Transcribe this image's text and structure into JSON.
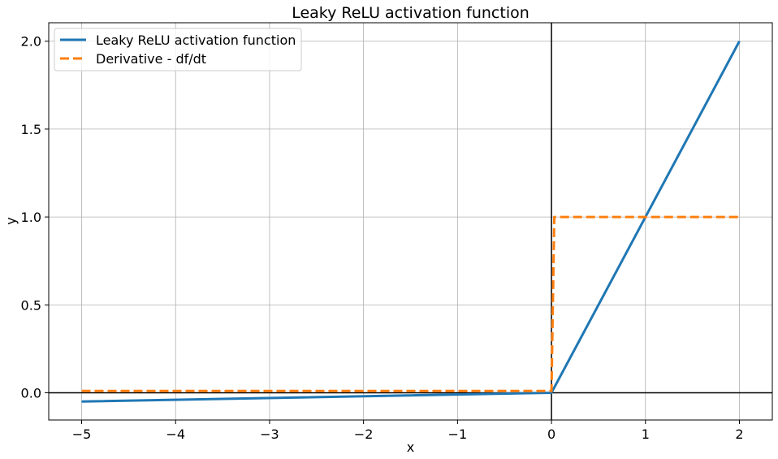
{
  "chart_data": {
    "type": "line",
    "title": "Leaky ReLU activation function",
    "xlabel": "x",
    "ylabel": "y",
    "xlim": [
      -5.35,
      2.35
    ],
    "ylim": [
      -0.155,
      2.105
    ],
    "xticks": [
      -5,
      -4,
      -3,
      -2,
      -1,
      0,
      1,
      2
    ],
    "xtick_labels": [
      "−5",
      "−4",
      "−3",
      "−2",
      "−1",
      "0",
      "1",
      "2"
    ],
    "yticks": [
      0.0,
      0.5,
      1.0,
      1.5,
      2.0
    ],
    "ytick_labels": [
      "0.0",
      "0.5",
      "1.0",
      "1.5",
      "2.0"
    ],
    "grid": true,
    "legend_position": "top-left",
    "reference_lines": {
      "x": 0,
      "y": 0
    },
    "series": [
      {
        "name": "Leaky ReLU activation function",
        "style": "solid",
        "color": "#1f77b4",
        "x": [
          -5,
          0,
          2
        ],
        "y": [
          -0.05,
          0,
          2
        ]
      },
      {
        "name": "Derivative - df/dt",
        "style": "dashed",
        "color": "#ff7f0e",
        "x": [
          -5,
          0,
          0.03,
          2
        ],
        "y": [
          0.01,
          0.01,
          1,
          1
        ]
      }
    ]
  }
}
